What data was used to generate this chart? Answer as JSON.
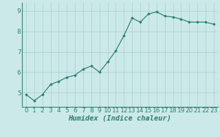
{
  "xlabel": "Humidex (Indice chaleur)",
  "x_values": [
    0,
    1,
    2,
    3,
    4,
    5,
    6,
    7,
    8,
    9,
    10,
    11,
    12,
    13,
    14,
    15,
    16,
    17,
    18,
    19,
    20,
    21,
    22,
    23
  ],
  "y_values": [
    4.9,
    4.6,
    4.9,
    5.4,
    5.55,
    5.75,
    5.85,
    6.15,
    6.3,
    6.0,
    6.5,
    7.05,
    7.8,
    8.65,
    8.45,
    8.85,
    8.95,
    8.75,
    8.7,
    8.6,
    8.45,
    8.45,
    8.45,
    8.35
  ],
  "line_color": "#2e7d6e",
  "marker": "D",
  "marker_size": 1.8,
  "line_width": 0.9,
  "ylim": [
    4.3,
    9.4
  ],
  "yticks": [
    5,
    6,
    7,
    8,
    9
  ],
  "xlim": [
    -0.5,
    23.5
  ],
  "bg_color": "#cce9ea",
  "grid_color": "#a8cccc",
  "tick_label_fontsize": 6.5,
  "xlabel_fontsize": 7.5
}
